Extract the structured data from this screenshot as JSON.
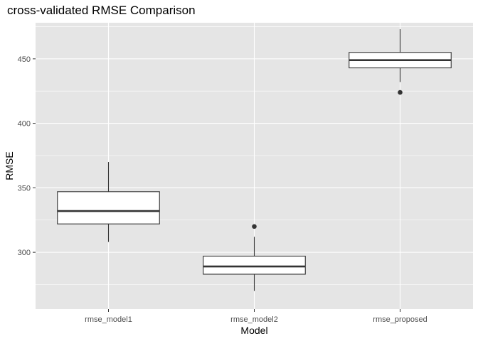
{
  "chart_data": {
    "type": "boxplot",
    "title": "cross-validated RMSE Comparison",
    "xlabel": "Model",
    "ylabel": "RMSE",
    "categories": [
      "rmse_model1",
      "rmse_model2",
      "rmse_proposed"
    ],
    "ylim": [
      256,
      478
    ],
    "yticks": [
      300,
      350,
      400,
      450
    ],
    "grid": true,
    "legend": "none",
    "colors": {
      "panel": "#E5E5E5",
      "grid_major": "#FFFFFF",
      "box_fill": "#FFFFFF",
      "box_line": "#333333",
      "tick_label": "#4D4D4D"
    },
    "boxes": [
      {
        "category": "rmse_model1",
        "whisker_low": 308,
        "q1": 322,
        "median": 332,
        "q3": 347,
        "whisker_high": 370,
        "outliers": []
      },
      {
        "category": "rmse_model2",
        "whisker_low": 270,
        "q1": 283,
        "median": 289,
        "q3": 297,
        "whisker_high": 312,
        "outliers": [
          320
        ]
      },
      {
        "category": "rmse_proposed",
        "whisker_low": 432,
        "q1": 443,
        "median": 449,
        "q3": 455,
        "whisker_high": 473,
        "outliers": [
          424
        ]
      }
    ]
  }
}
